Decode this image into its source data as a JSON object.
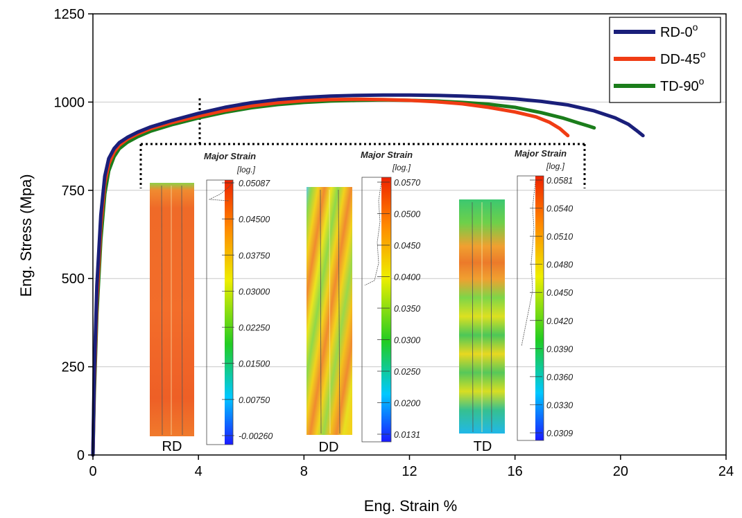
{
  "chart_data": {
    "type": "line",
    "xlabel": "Eng. Strain %",
    "ylabel": "Eng. Stress (Mpa)",
    "xlim": [
      0,
      24
    ],
    "ylim": [
      0,
      1250
    ],
    "xticks": [
      "0",
      "4",
      "8",
      "12",
      "16",
      "20",
      "24"
    ],
    "yticks": [
      "0",
      "250",
      "500",
      "750",
      "1000",
      "1250"
    ],
    "grid": "horizontal",
    "legend_position": "top-right",
    "series": [
      {
        "name": "RD-0",
        "sup": "o",
        "color": "#1a1f7a",
        "x": [
          0,
          0.05,
          0.15,
          0.3,
          0.45,
          0.6,
          0.8,
          1.0,
          1.3,
          1.7,
          2.2,
          3.0,
          4.0,
          5.0,
          6.0,
          7.0,
          8.0,
          9.0,
          10.0,
          11.0,
          12.0,
          13.0,
          14.0,
          15.0,
          16.0,
          17.0,
          18.0,
          19.0,
          19.8,
          20.3,
          20.6,
          20.85
        ],
        "y": [
          0,
          230,
          480,
          680,
          790,
          840,
          868,
          885,
          900,
          915,
          930,
          948,
          968,
          985,
          998,
          1007,
          1013,
          1017,
          1019,
          1020,
          1020,
          1019,
          1017,
          1014,
          1009,
          1002,
          992,
          975,
          955,
          937,
          920,
          905
        ]
      },
      {
        "name": "DD-45",
        "sup": "o",
        "color": "#f03c14",
        "x": [
          0,
          0.05,
          0.15,
          0.3,
          0.45,
          0.6,
          0.8,
          1.0,
          1.3,
          1.7,
          2.2,
          3.0,
          4.0,
          5.0,
          6.0,
          7.0,
          8.0,
          9.0,
          10.0,
          11.0,
          12.0,
          13.0,
          14.0,
          15.0,
          16.0,
          16.8,
          17.3,
          17.7,
          18.0
        ],
        "y": [
          0,
          200,
          440,
          650,
          770,
          825,
          858,
          878,
          895,
          910,
          925,
          942,
          960,
          976,
          989,
          998,
          1004,
          1007,
          1008,
          1007,
          1005,
          1001,
          995,
          985,
          972,
          958,
          943,
          925,
          905
        ]
      },
      {
        "name": "TD-90",
        "sup": "o",
        "color": "#1b7d1b",
        "x": [
          0,
          0.05,
          0.15,
          0.3,
          0.45,
          0.6,
          0.8,
          1.0,
          1.3,
          1.7,
          2.2,
          3.0,
          4.0,
          5.0,
          6.0,
          7.0,
          8.0,
          9.0,
          10.0,
          11.0,
          12.0,
          13.0,
          14.0,
          15.0,
          16.0,
          17.0,
          17.8,
          18.4,
          18.8,
          19.0
        ],
        "y": [
          0,
          170,
          400,
          610,
          740,
          805,
          845,
          868,
          886,
          902,
          918,
          936,
          955,
          971,
          984,
          993,
          999,
          1003,
          1005,
          1006,
          1005,
          1003,
          999,
          994,
          985,
          970,
          955,
          941,
          932,
          927
        ]
      }
    ]
  },
  "inset": {
    "samples": [
      {
        "label": "RD",
        "title": "Major Strain",
        "unit": "[log.]",
        "colorbar_labels": [
          "0.05087",
          "0.04500",
          "0.03750",
          "0.03000",
          "0.02250",
          "0.01500",
          "0.00750",
          "-0.00260"
        ]
      },
      {
        "label": "DD",
        "title": "Major Strain",
        "unit": "[log.]",
        "colorbar_labels": [
          "0.0570",
          "0.0500",
          "0.0450",
          "0.0400",
          "0.0350",
          "0.0300",
          "0.0250",
          "0.0200",
          "0.0131"
        ]
      },
      {
        "label": "TD",
        "title": "Major Strain",
        "unit": "[log.]",
        "colorbar_labels": [
          "0.0581",
          "0.0540",
          "0.0510",
          "0.0480",
          "0.0450",
          "0.0420",
          "0.0390",
          "0.0360",
          "0.0330",
          "0.0309"
        ]
      }
    ]
  }
}
